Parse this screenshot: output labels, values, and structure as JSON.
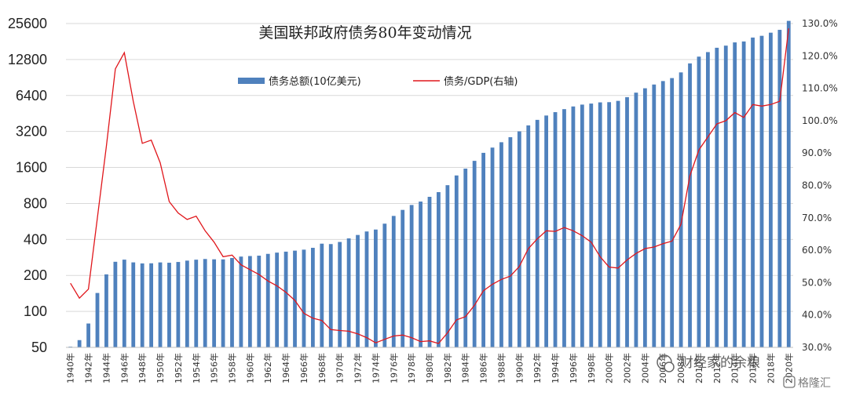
{
  "watermark": {
    "text1": "财经家的余粮",
    "text2": "格隆汇"
  },
  "chart_data": {
    "type": "bar+line",
    "title": "美国联邦政府债务80年变动情况",
    "legend": [
      {
        "name": "债务总额(10亿美元)",
        "kind": "bar",
        "color": "#4f81bd"
      },
      {
        "name": "债务/GDP(右轴)",
        "kind": "line",
        "color": "#e0161b"
      }
    ],
    "legend_position": "top-center",
    "left_axis": {
      "scale": "log2",
      "ylim": [
        50,
        25600
      ],
      "ticks": [
        "50",
        "100",
        "200",
        "400",
        "800",
        "1600",
        "3200",
        "6400",
        "12800",
        "25600"
      ]
    },
    "right_axis": {
      "ylim": [
        30,
        130
      ],
      "ticks": [
        "30.0%",
        "40.0%",
        "50.0%",
        "60.0%",
        "70.0%",
        "80.0%",
        "90.0%",
        "100.0%",
        "110.0%",
        "120.0%",
        "130.0%"
      ]
    },
    "x_tick_labels": [
      "1940年",
      "1942年",
      "1944年",
      "1946年",
      "1948年",
      "1950年",
      "1952年",
      "1954年",
      "1956年",
      "1958年",
      "1960年",
      "1962年",
      "1964年",
      "1966年",
      "1968年",
      "1970年",
      "1972年",
      "1974年",
      "1976年",
      "1978年",
      "1980年",
      "1982年",
      "1984年",
      "1986年",
      "1988年",
      "1990年",
      "1992年",
      "1994年",
      "1996年",
      "1998年",
      "2000年",
      "2002年",
      "2004年",
      "2006年",
      "2008年",
      "2010年",
      "2012年",
      "2014年",
      "2016年",
      "2018年",
      "2020年"
    ],
    "years": [
      1940,
      1941,
      1942,
      1943,
      1944,
      1945,
      1946,
      1947,
      1948,
      1949,
      1950,
      1951,
      1952,
      1953,
      1954,
      1955,
      1956,
      1957,
      1958,
      1959,
      1960,
      1961,
      1962,
      1963,
      1964,
      1965,
      1966,
      1967,
      1968,
      1969,
      1970,
      1971,
      1972,
      1973,
      1974,
      1975,
      1976,
      1977,
      1978,
      1979,
      1980,
      1981,
      1982,
      1983,
      1984,
      1985,
      1986,
      1987,
      1988,
      1989,
      1990,
      1991,
      1992,
      1993,
      1994,
      1995,
      1996,
      1997,
      1998,
      1999,
      2000,
      2001,
      2002,
      2003,
      2004,
      2005,
      2006,
      2007,
      2008,
      2009,
      2010,
      2011,
      2012,
      2013,
      2014,
      2015,
      2016,
      2017,
      2018,
      2019,
      2020
    ],
    "debt_billion_usd": [
      50.7,
      57.5,
      79.2,
      142.6,
      204.1,
      260.1,
      271.0,
      257.1,
      252.0,
      252.6,
      256.9,
      255.3,
      259.1,
      266.0,
      270.8,
      274.4,
      272.7,
      272.3,
      279.7,
      287.5,
      290.5,
      292.6,
      302.9,
      310.3,
      316.1,
      322.3,
      328.5,
      340.4,
      368.7,
      365.8,
      380.9,
      408.2,
      435.9,
      466.3,
      483.9,
      541.9,
      629.0,
      706.4,
      776.6,
      829.5,
      909.0,
      994.8,
      1137.3,
      1371.7,
      1564.6,
      1817.4,
      2120.5,
      2346.0,
      2601.1,
      2867.8,
      3206.3,
      3598.2,
      4001.8,
      4351.0,
      4643.3,
      4920.6,
      5181.5,
      5369.2,
      5478.2,
      5605.5,
      5628.7,
      5769.9,
      6198.4,
      6760.0,
      7354.7,
      7905.3,
      8451.4,
      8950.7,
      9986.1,
      11875.9,
      13528.8,
      14764.2,
      16050.9,
      16719.4,
      17794.5,
      18120.1,
      19539.5,
      20205.7,
      21462.3,
      22669.5,
      26945.4
    ],
    "debt_to_gdp_pct": [
      49.8,
      45.2,
      48.0,
      70.0,
      92.0,
      116.0,
      121.0,
      106.0,
      93.0,
      94.0,
      87.0,
      75.0,
      71.5,
      69.5,
      70.5,
      66.0,
      62.5,
      58.0,
      58.5,
      55.5,
      54.0,
      52.5,
      50.5,
      49.0,
      47.0,
      44.5,
      40.5,
      39.0,
      38.3,
      35.5,
      35.2,
      35.0,
      34.2,
      33.0,
      31.4,
      32.5,
      33.5,
      33.8,
      33.0,
      31.8,
      32.0,
      31.2,
      34.5,
      38.5,
      39.5,
      43.0,
      47.5,
      49.5,
      51.0,
      52.0,
      55.0,
      60.5,
      63.5,
      66.0,
      65.8,
      67.0,
      66.0,
      64.5,
      62.5,
      58.0,
      54.8,
      54.5,
      57.0,
      59.0,
      60.5,
      61.0,
      62.0,
      62.8,
      68.0,
      83.0,
      91.0,
      95.0,
      99.0,
      100.0,
      102.5,
      101.0,
      105.0,
      104.5,
      105.0,
      106.0,
      128.5
    ]
  }
}
